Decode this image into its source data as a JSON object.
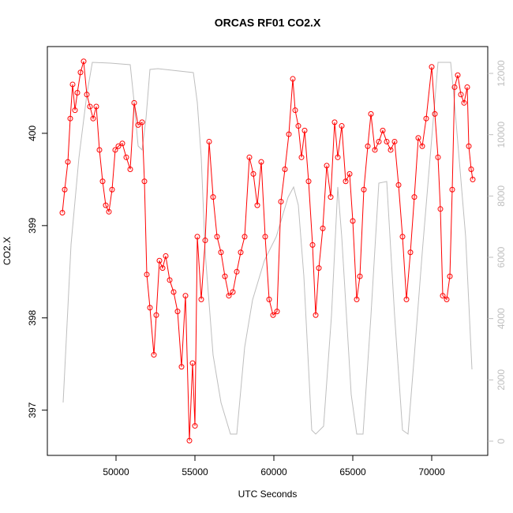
{
  "chart_data": {
    "type": "line",
    "title": "ORCAS RF01 CO2.X",
    "xlabel": "UTC Seconds",
    "ylabel": "CO2.X",
    "xlim": [
      45650,
      73550
    ],
    "xticks": [
      50000,
      55000,
      60000,
      65000,
      70000
    ],
    "ylim": [
      396.51,
      400.94
    ],
    "yticks": [
      397,
      398,
      399,
      400
    ],
    "y2lim": [
      -464,
      12876
    ],
    "y2ticks": [
      0,
      2000,
      4000,
      6000,
      8000,
      10000,
      12000
    ],
    "series": [
      {
        "color": "#ff0000",
        "marker": "circle",
        "x": [
          46600,
          46750,
          46950,
          47100,
          47250,
          47400,
          47550,
          47750,
          47950,
          48150,
          48350,
          48550,
          48750,
          48950,
          49150,
          49350,
          49550,
          49750,
          49950,
          50150,
          50400,
          50650,
          50900,
          51150,
          51400,
          51650,
          51800,
          51950,
          52150,
          52400,
          52550,
          52750,
          52950,
          53150,
          53400,
          53650,
          53900,
          54150,
          54400,
          54650,
          54850,
          55000,
          55150,
          55400,
          55650,
          55900,
          56150,
          56400,
          56650,
          56900,
          57150,
          57400,
          57650,
          57900,
          58150,
          58450,
          58700,
          58950,
          59200,
          59450,
          59700,
          59950,
          60200,
          60450,
          60700,
          60950,
          61200,
          61350,
          61550,
          61750,
          61950,
          62200,
          62450,
          62650,
          62850,
          63100,
          63350,
          63600,
          63850,
          64050,
          64300,
          64550,
          64800,
          65000,
          65250,
          65450,
          65700,
          65950,
          66150,
          66400,
          66650,
          66900,
          67150,
          67400,
          67650,
          67900,
          68150,
          68400,
          68650,
          68900,
          69150,
          69400,
          69650,
          70000,
          70200,
          70400,
          70550,
          70700,
          70950,
          71150,
          71300,
          71450,
          71650,
          71850,
          72050,
          72250,
          72350,
          72500,
          72600
        ],
        "values": [
          399.14,
          399.39,
          399.69,
          400.16,
          400.53,
          400.25,
          400.44,
          400.66,
          400.78,
          400.42,
          400.29,
          400.16,
          400.29,
          399.82,
          399.48,
          399.22,
          399.15,
          399.39,
          399.82,
          399.86,
          399.89,
          399.74,
          399.61,
          400.33,
          400.09,
          400.12,
          399.48,
          398.47,
          398.11,
          397.6,
          398.03,
          398.62,
          398.54,
          398.67,
          398.41,
          398.28,
          398.07,
          397.47,
          398.24,
          396.67,
          397.51,
          396.83,
          398.88,
          398.2,
          398.84,
          399.91,
          399.31,
          398.88,
          398.71,
          398.45,
          398.24,
          398.28,
          398.5,
          398.71,
          398.88,
          399.74,
          399.56,
          399.22,
          399.69,
          398.88,
          398.2,
          398.03,
          398.07,
          399.26,
          399.61,
          399.99,
          400.59,
          400.25,
          400.08,
          399.74,
          400.03,
          399.48,
          398.79,
          398.03,
          398.54,
          398.97,
          399.65,
          399.31,
          400.12,
          399.74,
          400.08,
          399.48,
          399.56,
          399.05,
          398.2,
          398.45,
          399.39,
          399.86,
          400.21,
          399.82,
          399.91,
          400.03,
          399.91,
          399.82,
          399.91,
          399.44,
          398.88,
          398.2,
          398.71,
          399.31,
          399.95,
          399.86,
          400.16,
          400.72,
          400.21,
          399.74,
          399.18,
          398.24,
          398.2,
          398.45,
          399.39,
          400.5,
          400.63,
          400.42,
          400.33,
          400.5,
          399.86,
          399.61,
          399.5
        ]
      },
      {
        "color": "#bebebe",
        "axis": "y2",
        "x": [
          46650,
          47150,
          47650,
          48150,
          48500,
          49650,
          50900,
          51150,
          51400,
          51650,
          51900,
          52150,
          52650,
          54900,
          55150,
          55400,
          55650,
          56150,
          56650,
          57250,
          57650,
          58150,
          58650,
          59400,
          60150,
          60900,
          61250,
          61550,
          61900,
          62400,
          62650,
          63150,
          63650,
          64050,
          64300,
          64900,
          65250,
          65650,
          66150,
          66650,
          67150,
          67650,
          68150,
          68500,
          68900,
          69400,
          70400,
          71200,
          71400,
          72150,
          72550
        ],
        "values": [
          1262,
          6413,
          9245,
          11306,
          12362,
          12336,
          12284,
          11048,
          9632,
          9503,
          10533,
          12130,
          12156,
          12027,
          11048,
          9245,
          6155,
          2807,
          1262,
          232,
          232,
          3065,
          4610,
          5897,
          6670,
          7958,
          8293,
          7700,
          5382,
          360,
          232,
          489,
          4095,
          8293,
          6670,
          1519,
          232,
          232,
          4095,
          8421,
          8473,
          4095,
          360,
          232,
          2807,
          6155,
          12362,
          12362,
          11306,
          6670,
          2344
        ]
      }
    ]
  }
}
